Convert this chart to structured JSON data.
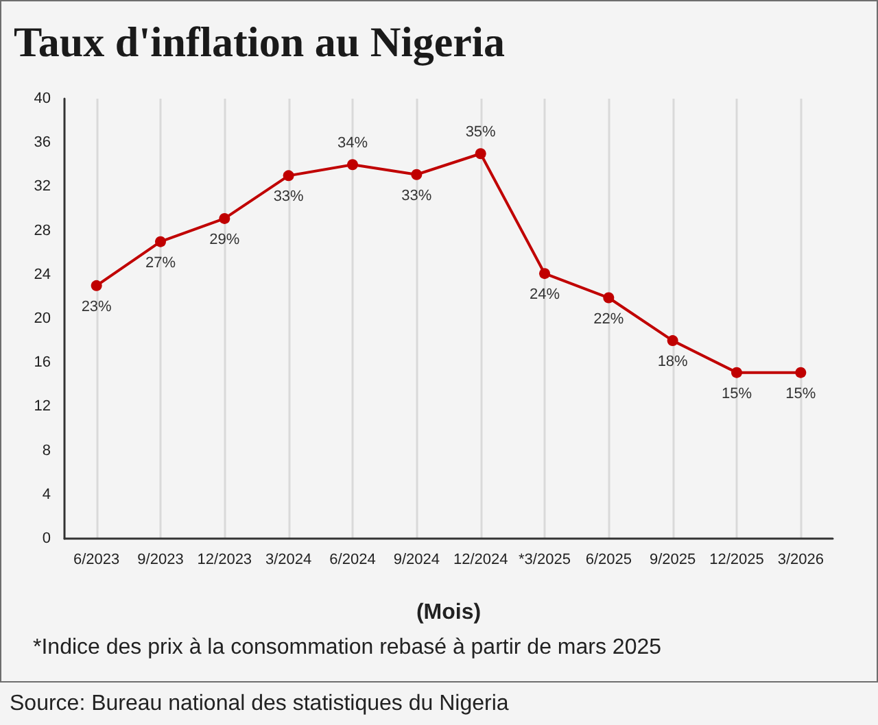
{
  "chart_data": {
    "type": "line",
    "title": "Taux d'inflation au Nigeria",
    "xlabel": "(Mois)",
    "categories": [
      "6/2023",
      "9/2023",
      "12/2023",
      "3/2024",
      "6/2024",
      "9/2024",
      "12/2024",
      "*3/2025",
      "6/2025",
      "9/2025",
      "12/2025",
      "3/2026"
    ],
    "values": [
      23.0,
      27.0,
      29.1,
      33.0,
      34.0,
      33.1,
      35.0,
      24.1,
      21.9,
      18.0,
      15.1,
      15.1
    ],
    "value_labels": [
      "23%",
      "27%",
      "29%",
      "33%",
      "34%",
      "33%",
      "35%",
      "24%",
      "22%",
      "18%",
      "15%",
      "15%"
    ],
    "color": "#c00000",
    "marker": "circle",
    "line_style": "solid",
    "ylim": [
      0,
      40
    ],
    "yticks": [
      0,
      4,
      8,
      12,
      16,
      20,
      24,
      28,
      32,
      36,
      40
    ],
    "grid": "x",
    "annotations": [
      "*Indice des prix à la consommation rebasé à partir de mars 2025",
      "Source: Bureau national des statistiques du Nigeria"
    ]
  }
}
